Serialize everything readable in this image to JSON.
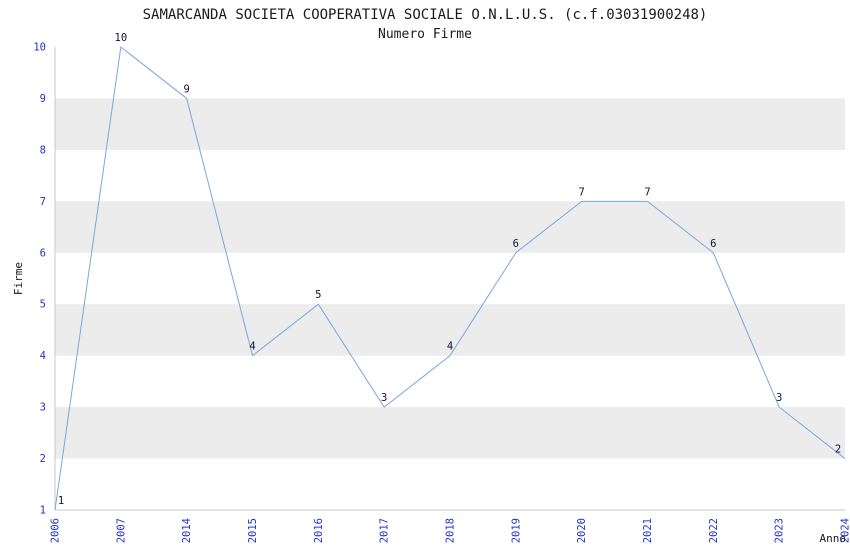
{
  "chart_data": {
    "type": "line",
    "title": "SAMARCANDA SOCIETA COOPERATIVA SOCIALE O.N.L.U.S. (c.f.03031900248)",
    "subtitle": "Numero Firme",
    "xlabel": "Anno",
    "ylabel": "Firme",
    "categories": [
      "2006",
      "2007",
      "2014",
      "2015",
      "2016",
      "2017",
      "2018",
      "2019",
      "2020",
      "2021",
      "2022",
      "2023",
      "2024"
    ],
    "values": [
      1,
      10,
      9,
      4,
      5,
      3,
      4,
      6,
      7,
      7,
      6,
      3,
      2
    ],
    "ylim": [
      1,
      10
    ],
    "yticks": [
      1,
      2,
      3,
      4,
      5,
      6,
      7,
      8,
      9,
      10
    ],
    "grid": "alternating-horizontal-bands",
    "legend": "none",
    "colors": {
      "line": "#7aa7dc",
      "tick_labels": "#2233cc",
      "point_labels": "#10103a",
      "band": "#ececec",
      "axis": "#c9c9c9",
      "text": "#1a1a1a",
      "background": "#ffffff"
    }
  }
}
